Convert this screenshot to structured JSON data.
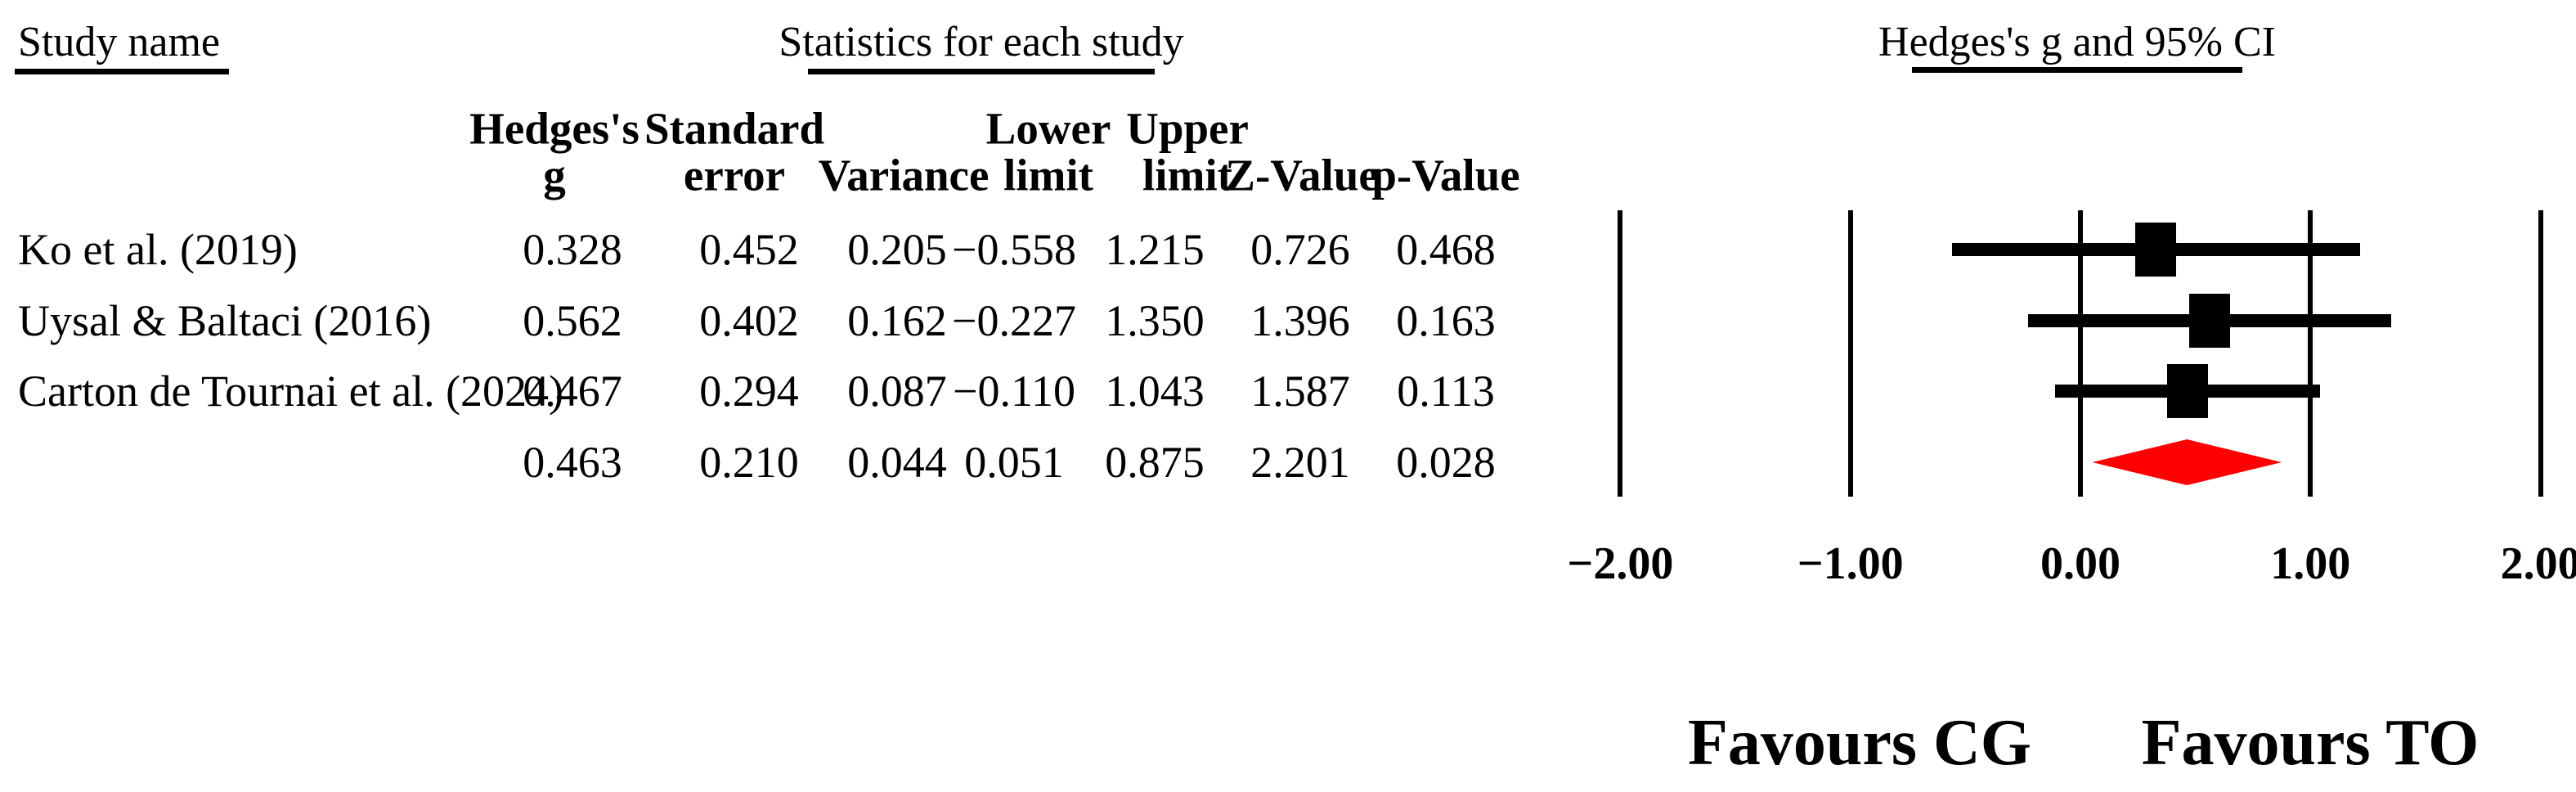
{
  "figure": {
    "section_titles": {
      "study": "Study name",
      "stats": "Statistics for each study",
      "plot": "Hedges's g and 95% CI"
    },
    "footer": {
      "left": "Favours CG",
      "right": "Favours TO"
    }
  },
  "chart_data": {
    "type": "forest",
    "title": "Hedges's g and 95% CI",
    "stats_header": "Statistics for each study",
    "study_header": "Study name",
    "effect_measure": "Hedges's g",
    "columns": [
      {
        "line1": "Hedges's",
        "line2": "g"
      },
      {
        "line1": "Standard",
        "line2": "error"
      },
      {
        "line1": "",
        "line2": "Variance"
      },
      {
        "line1": "Lower",
        "line2": "limit"
      },
      {
        "line1": "Upper",
        "line2": "limit"
      },
      {
        "line1": "",
        "line2": "Z-Value"
      },
      {
        "line1": "",
        "line2": "p-Value"
      }
    ],
    "studies": [
      {
        "name": "Ko et al. (2019)",
        "g": 0.328,
        "se": 0.452,
        "variance": 0.205,
        "lower": -0.558,
        "upper": 1.215,
        "z": 0.726,
        "p": 0.468,
        "cells": [
          "0.328",
          "0.452",
          "0.205",
          "−0.558",
          "1.215",
          "0.726",
          "0.468"
        ]
      },
      {
        "name": "Uysal & Baltaci (2016)",
        "g": 0.562,
        "se": 0.402,
        "variance": 0.162,
        "lower": -0.227,
        "upper": 1.35,
        "z": 1.396,
        "p": 0.163,
        "cells": [
          "0.562",
          "0.402",
          "0.162",
          "−0.227",
          "1.350",
          "1.396",
          "0.163"
        ]
      },
      {
        "name": "Carton de Tournai et al. (2024)",
        "g": 0.467,
        "se": 0.294,
        "variance": 0.087,
        "lower": -0.11,
        "upper": 1.043,
        "z": 1.587,
        "p": 0.113,
        "cells": [
          "0.467",
          "0.294",
          "0.087",
          "−0.110",
          "1.043",
          "1.587",
          "0.113"
        ]
      }
    ],
    "summary": {
      "name": "",
      "g": 0.463,
      "se": 0.21,
      "variance": 0.044,
      "lower": 0.051,
      "upper": 0.875,
      "z": 2.201,
      "p": 0.028,
      "cells": [
        "0.463",
        "0.210",
        "0.044",
        "0.051",
        "0.875",
        "2.201",
        "0.028"
      ]
    },
    "xlim": [
      -2,
      2
    ],
    "xtick_values": [
      -2,
      -1,
      0,
      1,
      2
    ],
    "xtick_labels": [
      "−2.00",
      "−1.00",
      "0.00",
      "1.00",
      "2.00"
    ],
    "grid": true,
    "legend_position": "none",
    "footer_labels": {
      "left": "Favours CG",
      "right": "Favours TO"
    },
    "colors": {
      "marker": "#000000",
      "ci_line": "#000000",
      "summary_diamond": "#FF0000",
      "text": "#000000",
      "background": "#FFFFFF"
    }
  }
}
